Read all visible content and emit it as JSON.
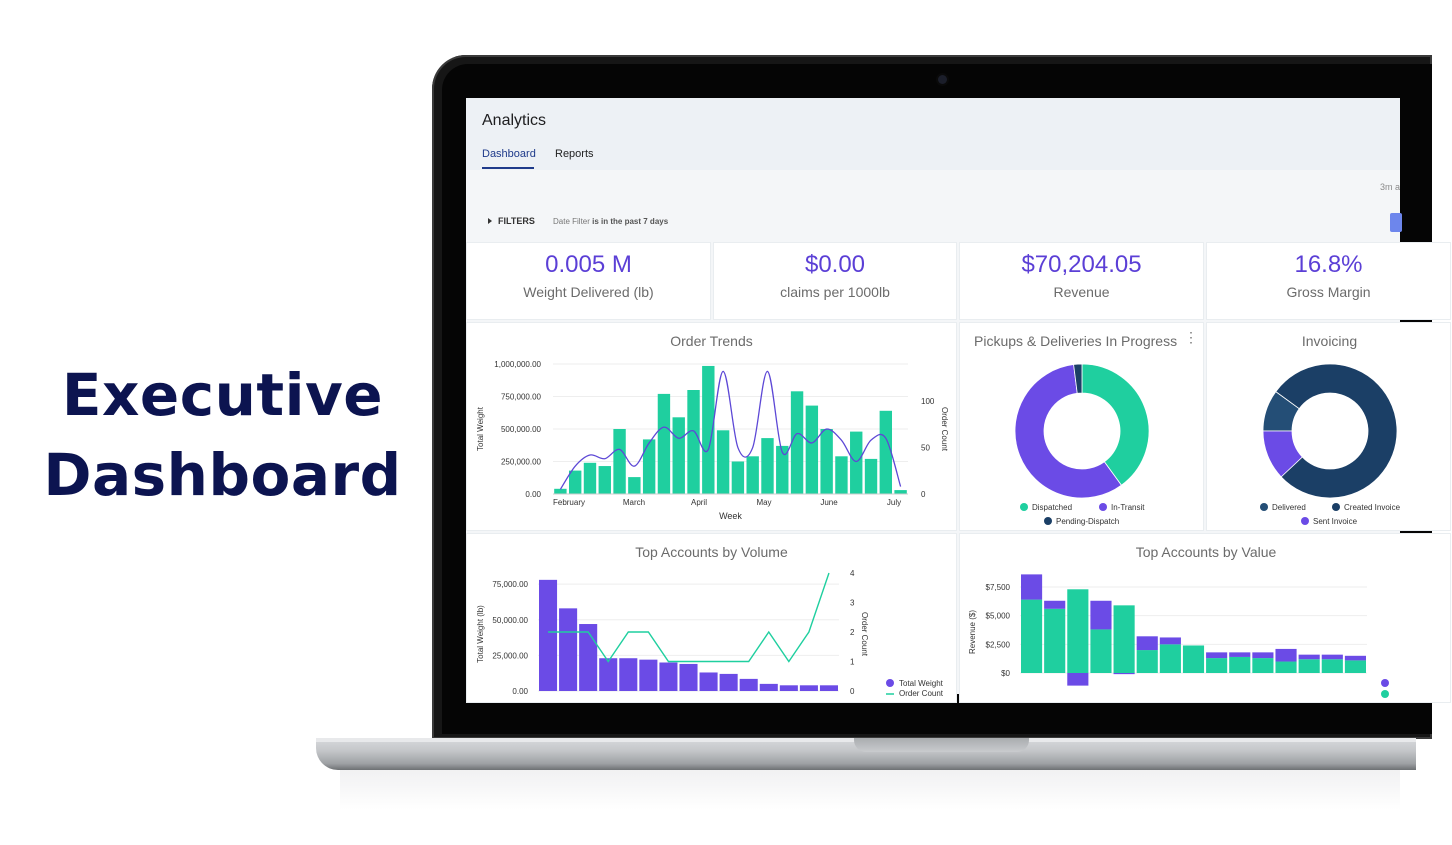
{
  "hero": {
    "line1": "Executive",
    "line2": "Dashboard"
  },
  "app": {
    "title": "Analytics",
    "tabs": [
      {
        "label": "Dashboard",
        "active": true
      },
      {
        "label": "Reports",
        "active": false
      }
    ],
    "timestamp": "3m a",
    "filters": {
      "label": "FILTERS",
      "prefix": "Date Filter",
      "condition": "is in the past 7 days"
    }
  },
  "kpis": [
    {
      "value": "0.005 M",
      "label": "Weight Delivered (lb)"
    },
    {
      "value": "$0.00",
      "label": "claims per 1000lb"
    },
    {
      "value": "$70,204.05",
      "label": "Revenue"
    },
    {
      "value": "16.8%",
      "label": "Gross Margin"
    }
  ],
  "colors": {
    "teal": "#1fcf9f",
    "purple": "#6b4be6",
    "navy": "#1b3f66",
    "kpi": "#5b3fd6"
  },
  "order_trends": {
    "title": "Order Trends",
    "chart_data": {
      "type": "bar",
      "xlabel": "Week",
      "ylabel": "Total Weight",
      "ylabel_right": "Order Count",
      "x_tick_labels": [
        "February",
        "March",
        "April",
        "May",
        "June",
        "July"
      ],
      "y_ticks": [
        "0.00",
        "250,000.00",
        "500,000.00",
        "750,000.00",
        "1,000,000.00"
      ],
      "y2_ticks": [
        "0",
        "50",
        "100"
      ],
      "ylim": [
        0,
        1000000
      ],
      "y2lim": [
        0,
        140
      ],
      "series": [
        {
          "axis": "left",
          "kind": "bar",
          "values": [
            40000,
            180000,
            240000,
            215000,
            500000,
            130000,
            420000,
            770000,
            590000,
            800000,
            985000,
            490000,
            250000,
            290000,
            430000,
            370000,
            790000,
            680000,
            500000,
            290000,
            480000,
            270000,
            640000,
            30000
          ]
        },
        {
          "axis": "right",
          "kind": "line",
          "values": [
            5,
            30,
            42,
            38,
            48,
            30,
            55,
            72,
            60,
            68,
            48,
            132,
            50,
            50,
            132,
            45,
            65,
            55,
            70,
            58,
            35,
            58,
            60,
            8
          ]
        }
      ]
    }
  },
  "pickups": {
    "title": "Pickups & Deliveries In Progress",
    "chart_data": {
      "type": "pie",
      "labels": [
        "Dispatched",
        "In-Transit",
        "Pending-Dispatch"
      ],
      "values": [
        40,
        58,
        2
      ],
      "legend": [
        "Dispatched",
        "In-Transit",
        "Pending-Dispatch"
      ]
    }
  },
  "invoicing": {
    "title": "Invoicing",
    "chart_data": {
      "type": "pie",
      "labels": [
        "Delivered",
        "Created Invoice",
        "Sent Invoice"
      ],
      "values": [
        10,
        78,
        12
      ],
      "legend": [
        "Delivered",
        "Created Invoice",
        "Sent Invoice"
      ]
    }
  },
  "top_volume": {
    "title": "Top Accounts by Volume",
    "chart_data": {
      "type": "bar",
      "ylabel": "Total Weight (lb)",
      "ylabel_right": "Order Count",
      "y_ticks": [
        "0.00",
        "25,000.00",
        "50,000.00",
        "75,000.00"
      ],
      "y2_ticks": [
        "0",
        "1",
        "2",
        "3",
        "4"
      ],
      "ylim": [
        0,
        80000
      ],
      "y2lim": [
        0,
        4
      ],
      "legend": [
        "Total Weight",
        "Order Count"
      ],
      "series": [
        {
          "name": "Total Weight",
          "kind": "bar",
          "values": [
            78000,
            58000,
            47000,
            23000,
            23000,
            22000,
            20000,
            19000,
            13000,
            12000,
            8500,
            5000,
            4000,
            4000,
            4000
          ]
        },
        {
          "name": "Order Count",
          "kind": "line",
          "values": [
            2,
            2,
            2,
            1,
            2,
            2,
            1,
            1,
            1,
            1,
            1,
            2,
            1,
            2,
            4
          ]
        }
      ]
    }
  },
  "top_value": {
    "title": "Top Accounts by Value",
    "chart_data": {
      "type": "bar",
      "ylabel": "Revenue ($)",
      "y_ticks": [
        "$0",
        "$2,500",
        "$5,000",
        "$7,500"
      ],
      "ylim": [
        -1000,
        8000
      ],
      "series": [
        {
          "kind": "stacked",
          "color": "teal",
          "values": [
            6400,
            5600,
            7300,
            3800,
            5900,
            2000,
            2500,
            2400,
            1300,
            1400,
            1300,
            1000,
            1200,
            1200,
            1100
          ]
        },
        {
          "kind": "stacked",
          "color": "purple",
          "values": [
            2200,
            700,
            -1100,
            2500,
            -100,
            1200,
            600,
            0,
            500,
            400,
            500,
            1100,
            400,
            400,
            400
          ]
        }
      ]
    }
  }
}
